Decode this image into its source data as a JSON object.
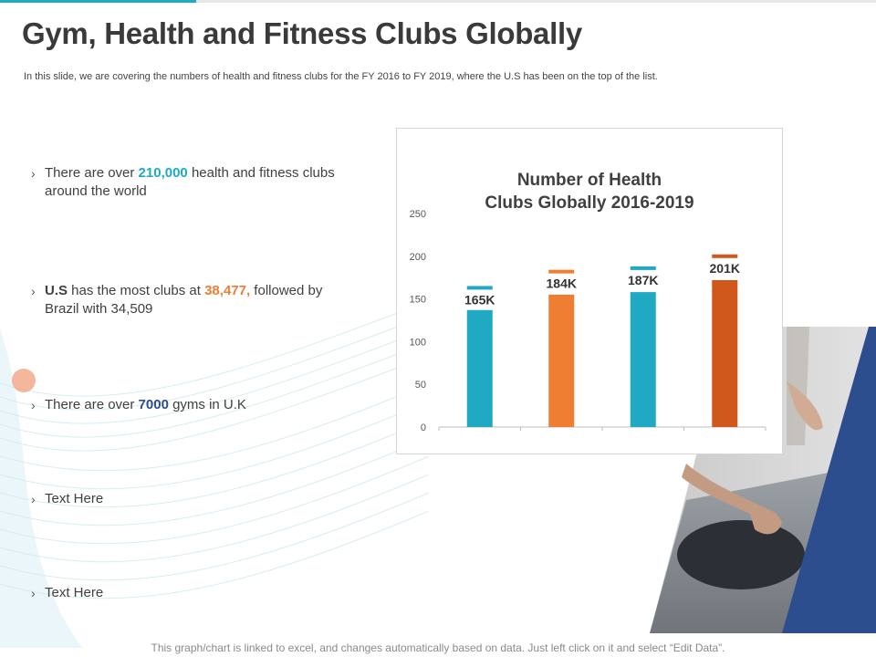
{
  "page": {
    "title": "Gym, Health and Fitness Clubs Globally",
    "subtitle": "In this slide, we are covering the numbers of health and fitness clubs for the FY 2016 to FY 2019, where the U.S has been on the top of the list.",
    "footer": "This graph/chart is linked to excel, and changes automatically based on data. Just left click on it and select “Edit Data”."
  },
  "bullets": [
    {
      "pre": "There are over ",
      "highlight": "210,000",
      "post": " health and fitness clubs around the world"
    },
    {
      "lead": "U.S",
      "pre": " has the most clubs at ",
      "highlight": "38,477,",
      "post": " followed by Brazil with 34,509"
    },
    {
      "pre": "There are over ",
      "highlight": "7000",
      "post": " gyms in U.K"
    },
    {
      "text": "Text Here"
    },
    {
      "text": "Text Here"
    }
  ],
  "bullet_glyph": "›",
  "colors": {
    "accent": "#1fa9c3",
    "orange": "#ef7d32",
    "dark_orange": "#d0581c",
    "navy": "#2b4b8c"
  },
  "chart_data": {
    "type": "bar",
    "title_lines": [
      "Number of Health",
      "Clubs Globally  2016-2019"
    ],
    "categories": [
      "",
      "",
      "",
      ""
    ],
    "values": [
      137,
      155,
      158,
      172
    ],
    "cap_values": [
      163,
      182,
      186,
      200
    ],
    "data_labels": [
      "165K",
      "184K",
      "187K",
      "201K"
    ],
    "bar_colors": [
      "#1fa9c3",
      "#ef7d32",
      "#1fa9c3",
      "#d0581c"
    ],
    "ylim": [
      0,
      250
    ],
    "yticks": [
      0,
      50,
      100,
      150,
      200,
      250
    ],
    "xlabel": "",
    "ylabel": "",
    "grid": false
  }
}
